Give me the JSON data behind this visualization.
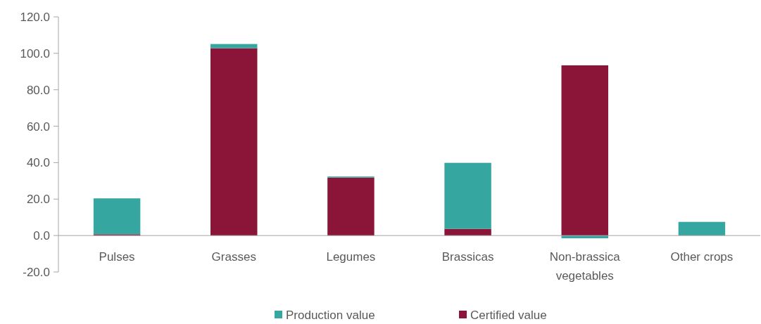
{
  "chart_data": {
    "type": "bar",
    "stacked": true,
    "categories": [
      "Pulses",
      "Grasses",
      "Legumes",
      "Brassicas",
      "Non-brassica vegetables",
      "Other crops"
    ],
    "series": [
      {
        "name": "Certified value",
        "color": "#8b1538",
        "values": [
          0.7,
          102.8,
          31.8,
          3.7,
          93.4,
          0
        ]
      },
      {
        "name": "Production value",
        "color": "#36a7a0",
        "values": [
          19.7,
          2.3,
          0.6,
          36.2,
          -1.5,
          7.5
        ]
      }
    ],
    "ylim": [
      -20,
      120
    ],
    "yticks": [
      {
        "value": -20,
        "label": "-20.0"
      },
      {
        "value": 0,
        "label": "0.0"
      },
      {
        "value": 20,
        "label": "20.0"
      },
      {
        "value": 40,
        "label": "40.0"
      },
      {
        "value": 60,
        "label": "60.0"
      },
      {
        "value": 80,
        "label": "80.0"
      },
      {
        "value": 100,
        "label": "100.0"
      },
      {
        "value": 120,
        "label": "120.0"
      }
    ],
    "grid": false,
    "legend": "bottom"
  }
}
